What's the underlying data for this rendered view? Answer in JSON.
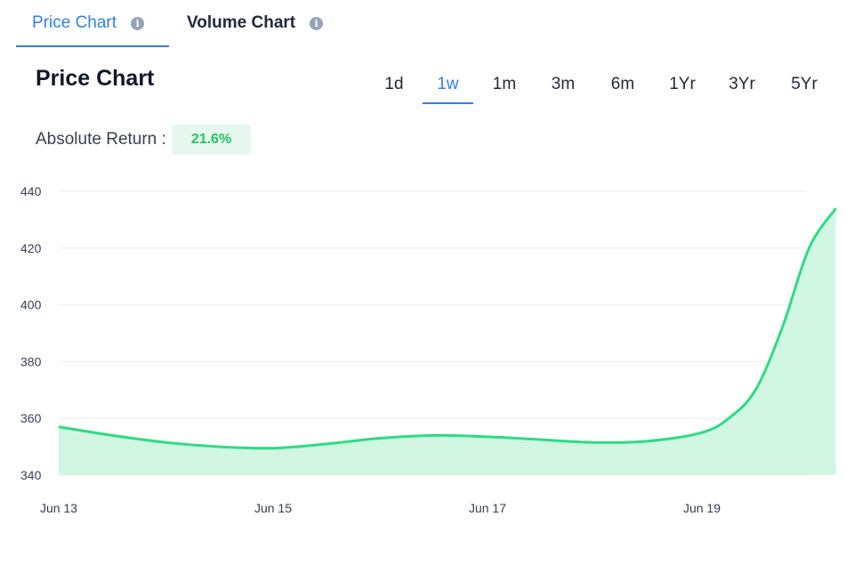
{
  "tabs": [
    {
      "label": "Price Chart",
      "active": true,
      "info_icon": "info-icon"
    },
    {
      "label": "Volume Chart",
      "active": false,
      "info_icon": "info-icon"
    }
  ],
  "title": "Price Chart",
  "periods": [
    {
      "label": "1d",
      "active": false
    },
    {
      "label": "1w",
      "active": true
    },
    {
      "label": "1m",
      "active": false
    },
    {
      "label": "3m",
      "active": false
    },
    {
      "label": "6m",
      "active": false
    },
    {
      "label": "1Yr",
      "active": false
    },
    {
      "label": "3Yr",
      "active": false
    },
    {
      "label": "5Yr",
      "active": false
    }
  ],
  "absolute_return": {
    "label": "Absolute Return :",
    "value": "21.6%"
  },
  "colors": {
    "accent": "#2f80ed",
    "line": "#2edb84",
    "fill": "#d1f7e3",
    "badge_bg": "#e6f8ee",
    "badge_text": "#22c55e"
  },
  "chart_data": {
    "type": "area",
    "x": [
      "2024-06-13",
      "2024-06-13T12",
      "2024-06-14",
      "2024-06-14T12",
      "2024-06-15",
      "2024-06-15T12",
      "2024-06-16",
      "2024-06-16T12",
      "2024-06-17",
      "2024-06-17T12",
      "2024-06-18",
      "2024-06-18T12",
      "2024-06-19",
      "2024-06-19T06",
      "2024-06-19T12",
      "2024-06-19T18",
      "2024-06-20",
      "2024-06-20T06"
    ],
    "series": [
      {
        "values": [
          357,
          354,
          351.5,
          350,
          349.5,
          351,
          353,
          354,
          353.5,
          352.5,
          351.5,
          352,
          355,
          360,
          370,
          392,
          420,
          434
        ]
      }
    ],
    "x_ticks": [
      "Jun 13",
      "Jun 15",
      "Jun 17",
      "Jun 19"
    ],
    "y_ticks": [
      "440",
      "420",
      "400",
      "380",
      "360",
      "340"
    ],
    "ylim": [
      340,
      440
    ],
    "grid": true,
    "title": "",
    "xlabel": "",
    "ylabel": ""
  }
}
